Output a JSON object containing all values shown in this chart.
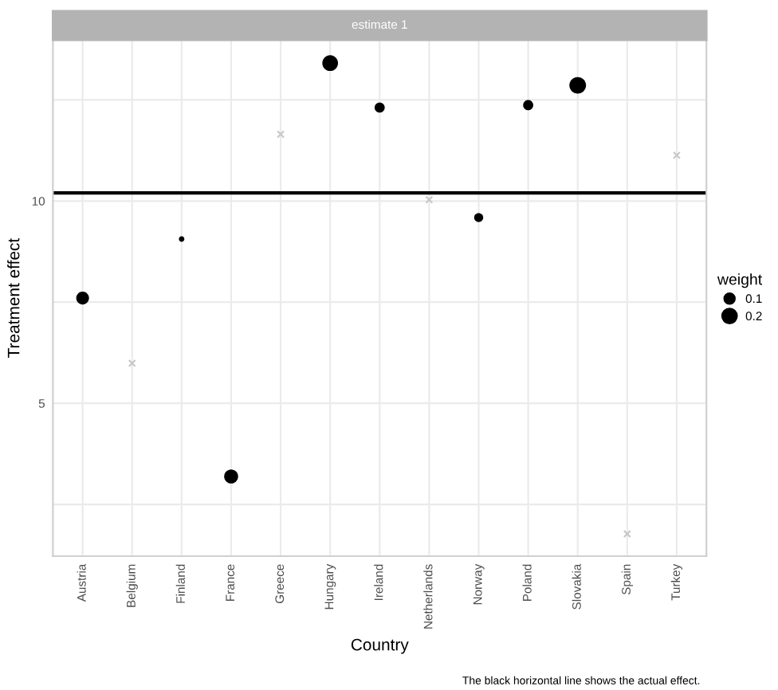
{
  "chart_data": {
    "type": "bubble",
    "title": "estimate 1",
    "xlabel": "Country",
    "ylabel": "Treatment effect",
    "legend_title": "weight",
    "categories": [
      "Austria",
      "Belgium",
      "Finland",
      "France",
      "Greece",
      "Hungary",
      "Ireland",
      "Netherlands",
      "Norway",
      "Poland",
      "Slovakia",
      "Spain",
      "Turkey"
    ],
    "series": [
      {
        "color": "#000000",
        "values": [
          7.6,
          null,
          9.06,
          3.19,
          null,
          13.41,
          12.31,
          null,
          9.59,
          12.37,
          12.86,
          null,
          null
        ],
        "sizes": [
          0.16,
          null,
          0.03,
          0.19,
          null,
          0.24,
          0.1,
          null,
          0.08,
          0.1,
          0.27,
          null,
          null
        ]
      },
      {
        "type": "scatter",
        "marker": "cross",
        "color": "#c8c8c8",
        "values": [
          null,
          5.99,
          null,
          null,
          11.65,
          null,
          null,
          10.03,
          null,
          null,
          null,
          1.77,
          11.13
        ]
      }
    ],
    "size_legend": [
      0.1,
      0.2
    ],
    "ylim": [
      1.22,
      13.98
    ],
    "yticks": [
      {
        "value": 2.5,
        "label": null
      },
      5,
      {
        "value": 7.5,
        "label": null
      },
      10,
      {
        "value": 12.5,
        "label": null
      }
    ],
    "grid": true,
    "ref_lines": [
      {
        "axis": "y",
        "value": 10.2,
        "color": "#000000",
        "line_style": "solid"
      }
    ],
    "annotations": [
      "The black horizontal line shows the actual effect."
    ]
  }
}
